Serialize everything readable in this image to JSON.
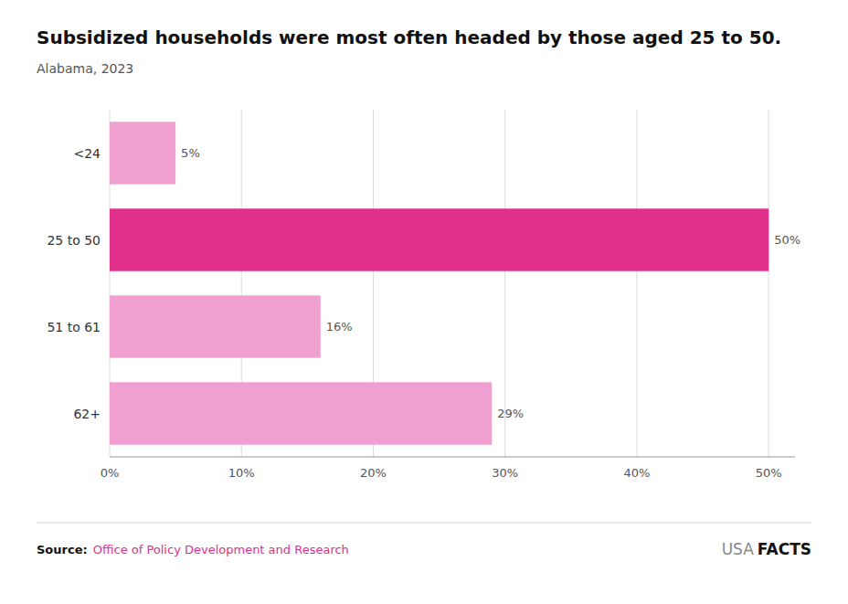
{
  "chart_data": {
    "type": "bar",
    "orientation": "horizontal",
    "title": "Subsidized households were most often headed by those aged 25 to 50.",
    "subtitle": "Alabama, 2023",
    "categories": [
      "<24",
      "25 to 50",
      "51 to 61",
      "62+"
    ],
    "values": [
      5,
      50,
      16,
      29
    ],
    "value_labels": [
      "5%",
      "50%",
      "16%",
      "29%"
    ],
    "colors": [
      "#f0a0d0",
      "#e0308c",
      "#f0a0d0",
      "#f0a0d0"
    ],
    "xlim": [
      0,
      52
    ],
    "xticks": [
      {
        "value": 0,
        "label": "0%"
      },
      {
        "value": 10,
        "label": "10%"
      },
      {
        "value": 20,
        "label": "20%"
      },
      {
        "value": 30,
        "label": "30%"
      },
      {
        "value": 40,
        "label": "40%"
      },
      {
        "value": 50,
        "label": "50%"
      }
    ],
    "grid": true,
    "data_labels": true,
    "annotations": [
      "Source:",
      "Office of Policy Development and Research",
      "USA",
      "FACTS"
    ]
  }
}
